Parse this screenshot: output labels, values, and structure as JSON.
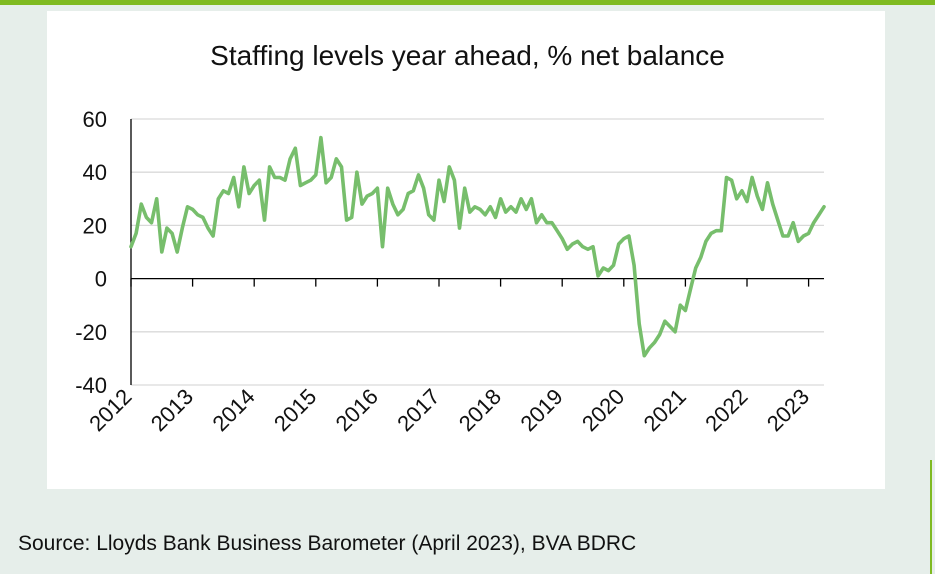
{
  "chart_data": {
    "type": "line",
    "title": "Staffing levels year ahead, % net balance",
    "xlabel": "",
    "ylabel": "",
    "ylim": [
      -40,
      60
    ],
    "yticks": [
      60,
      40,
      20,
      0,
      -20,
      -40
    ],
    "xticks": [
      "2012",
      "2013",
      "2014",
      "2015",
      "2016",
      "2017",
      "2018",
      "2019",
      "2020",
      "2021",
      "2022",
      "2023"
    ],
    "xrange": [
      "2012-01",
      "2023-04"
    ],
    "grid": true,
    "legend": "none",
    "line_color": "#77be6c",
    "series": [
      {
        "x": [
          "2012-01",
          "2012-02",
          "2012-03",
          "2012-04",
          "2012-05",
          "2012-06",
          "2012-07",
          "2012-08",
          "2012-09",
          "2012-10",
          "2012-11",
          "2012-12",
          "2013-01",
          "2013-02",
          "2013-03",
          "2013-04",
          "2013-05",
          "2013-06",
          "2013-07",
          "2013-08",
          "2013-09",
          "2013-10",
          "2013-11",
          "2013-12",
          "2014-01",
          "2014-02",
          "2014-03",
          "2014-04",
          "2014-05",
          "2014-06",
          "2014-07",
          "2014-08",
          "2014-09",
          "2014-10",
          "2014-11",
          "2014-12",
          "2015-01",
          "2015-02",
          "2015-03",
          "2015-04",
          "2015-05",
          "2015-06",
          "2015-07",
          "2015-08",
          "2015-09",
          "2015-10",
          "2015-11",
          "2015-12",
          "2016-01",
          "2016-02",
          "2016-03",
          "2016-04",
          "2016-05",
          "2016-06",
          "2016-07",
          "2016-08",
          "2016-09",
          "2016-10",
          "2016-11",
          "2016-12",
          "2017-01",
          "2017-02",
          "2017-03",
          "2017-04",
          "2017-05",
          "2017-06",
          "2017-07",
          "2017-08",
          "2017-09",
          "2017-10",
          "2017-11",
          "2017-12",
          "2018-01",
          "2018-02",
          "2018-03",
          "2018-04",
          "2018-05",
          "2018-06",
          "2018-07",
          "2018-08",
          "2018-09",
          "2018-10",
          "2018-11",
          "2018-12",
          "2019-01",
          "2019-02",
          "2019-03",
          "2019-04",
          "2019-05",
          "2019-06",
          "2019-07",
          "2019-08",
          "2019-09",
          "2019-10",
          "2019-11",
          "2019-12",
          "2020-01",
          "2020-02",
          "2020-03",
          "2020-04",
          "2020-05",
          "2020-06",
          "2020-07",
          "2020-08",
          "2020-09",
          "2020-10",
          "2020-11",
          "2020-12",
          "2021-01",
          "2021-02",
          "2021-03",
          "2021-04",
          "2021-05",
          "2021-06",
          "2021-07",
          "2021-08",
          "2021-09",
          "2021-10",
          "2021-11",
          "2021-12",
          "2022-01",
          "2022-02",
          "2022-03",
          "2022-04",
          "2022-05",
          "2022-06",
          "2022-07",
          "2022-08",
          "2022-09",
          "2022-10",
          "2022-11",
          "2022-12",
          "2023-01",
          "2023-02",
          "2023-03",
          "2023-04"
        ],
        "values": [
          12,
          17,
          28,
          23,
          21,
          30,
          10,
          19,
          17,
          10,
          19,
          27,
          26,
          24,
          23,
          19,
          16,
          30,
          33,
          32,
          38,
          27,
          42,
          32,
          35,
          37,
          22,
          42,
          38,
          38,
          37,
          45,
          49,
          35,
          36,
          37,
          39,
          53,
          36,
          38,
          45,
          42,
          22,
          23,
          40,
          28,
          31,
          32,
          34,
          12,
          34,
          28,
          24,
          26,
          32,
          33,
          39,
          34,
          24,
          22,
          37,
          29,
          42,
          37,
          19,
          34,
          25,
          27,
          26,
          24,
          27,
          23,
          30,
          25,
          27,
          25,
          30,
          26,
          30,
          21,
          24,
          21,
          21,
          18,
          15,
          11,
          13,
          14,
          12,
          11,
          12,
          1,
          4,
          3,
          5,
          13,
          15,
          16,
          5,
          -17,
          -29,
          -26,
          -24,
          -21,
          -16,
          -18,
          -20,
          -10,
          -12,
          -4,
          4,
          8,
          14,
          17,
          18,
          18,
          38,
          37,
          30,
          33,
          29,
          38,
          31,
          26,
          36,
          28,
          22,
          16,
          16,
          21,
          14,
          16,
          17,
          21,
          24,
          27
        ]
      }
    ]
  },
  "source": "Source: Lloyds Bank Business Barometer (April 2023), BVA BDRC"
}
